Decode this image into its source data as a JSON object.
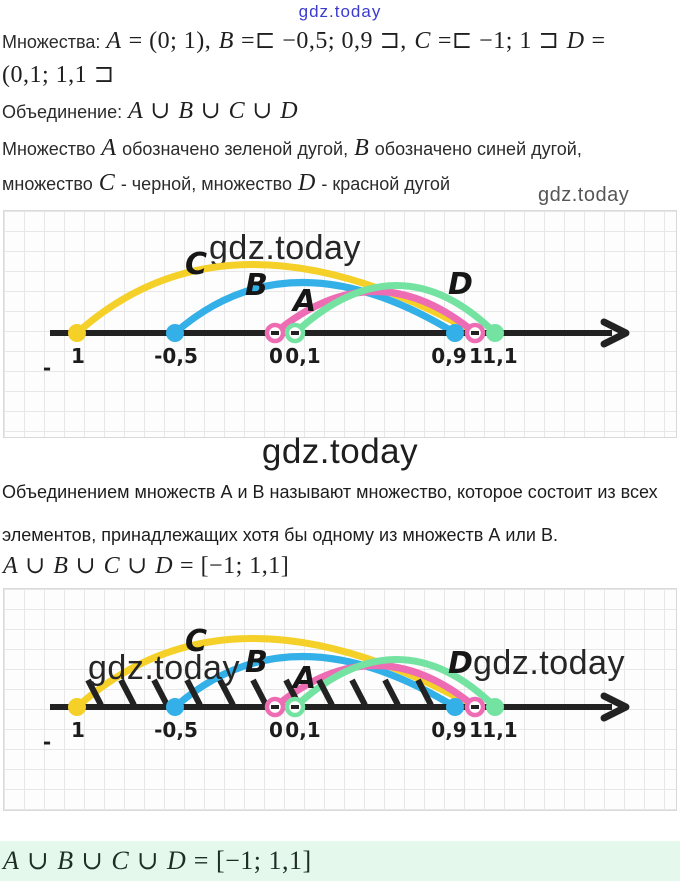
{
  "palette": {
    "set_a_pink": "#ee6cb3",
    "set_b_blue": "#33b0e8",
    "set_c_yellow": "#f4d029",
    "set_d_green": "#74e3a2",
    "line": "#222222",
    "answer_bg": "#e4f8ec",
    "title_blue": "#3b3bd0"
  },
  "watermarks": {
    "top": "gdz.today",
    "top_right": "gdz.today",
    "diagram1": "gdz.today",
    "mid": "gdz.today",
    "d2_left": "gdz.today",
    "d2_right": "gdz.today"
  },
  "intro": {
    "line1": [
      {
        "k": "lbl",
        "t": "Множества: "
      },
      {
        "k": "var",
        "t": "A"
      },
      {
        "k": "m",
        "t": " = (0;  1),  "
      },
      {
        "k": "var",
        "t": "B"
      },
      {
        "k": "m",
        "t": " =⊏ −0,5;  0,9 ⊐,  "
      },
      {
        "k": "var",
        "t": "C"
      },
      {
        "k": "m",
        "t": " =⊏ −1;  1 ⊐  "
      },
      {
        "k": "var",
        "t": "D"
      },
      {
        "k": "m",
        "t": " ="
      }
    ],
    "line2": [
      {
        "k": "m",
        "t": "(0,1;  1,1 ⊐"
      }
    ],
    "line3": [
      {
        "k": "lbl",
        "t": "Объединение: "
      },
      {
        "k": "var",
        "t": "A"
      },
      {
        "k": "m",
        "t": " ∪ "
      },
      {
        "k": "var",
        "t": "B"
      },
      {
        "k": "m",
        "t": " ∪ "
      },
      {
        "k": "var",
        "t": "C"
      },
      {
        "k": "m",
        "t": " ∪ "
      },
      {
        "k": "var",
        "t": "D"
      }
    ],
    "line4": [
      {
        "k": "lbl",
        "t": "Множество "
      },
      {
        "k": "var",
        "t": "A"
      },
      {
        "k": "lbl",
        "t": " обозначено зеленой дугой, "
      },
      {
        "k": "var",
        "t": "B"
      },
      {
        "k": "lbl",
        "t": " обозначено синей дугой,"
      }
    ],
    "line5": [
      {
        "k": "lbl",
        "t": "множество "
      },
      {
        "k": "var",
        "t": "C"
      },
      {
        "k": "lbl",
        "t": " - черной, множество "
      },
      {
        "k": "var",
        "t": "D"
      },
      {
        "k": "lbl",
        "t": " - красной дугой"
      }
    ]
  },
  "explanation": {
    "line1": "Объединением множеств А и В называют множество, которое состоит из всех",
    "line2": "элементов, принадлежащих хотя бы одному из множеств А или В."
  },
  "union_formula": [
    {
      "k": "var",
      "t": "A"
    },
    {
      "k": "m",
      "t": " ∪ "
    },
    {
      "k": "var",
      "t": "B"
    },
    {
      "k": "m",
      "t": " ∪ "
    },
    {
      "k": "var",
      "t": "C"
    },
    {
      "k": "m",
      "t": " ∪ "
    },
    {
      "k": "var",
      "t": "D"
    },
    {
      "k": "m",
      "t": " = [−1;  1,1]"
    }
  ],
  "answer_formula": [
    {
      "k": "var",
      "t": "A"
    },
    {
      "k": "m",
      "t": " ∪ "
    },
    {
      "k": "var",
      "t": "B"
    },
    {
      "k": "m",
      "t": " ∪ "
    },
    {
      "k": "var",
      "t": "C"
    },
    {
      "k": "m",
      "t": " ∪ "
    },
    {
      "k": "var",
      "t": "D"
    },
    {
      "k": "m",
      "t": " = [−1;  1,1]"
    }
  ],
  "diagram": {
    "labels": {
      "a": "A",
      "b": "B",
      "c": "C",
      "d": "D"
    },
    "ticks": {
      "t_m1": "1",
      "t_minus": "-",
      "t_m05": "-0,5",
      "t_0": "0",
      "t_01": "0,1",
      "t_09": "0,9",
      "t_1": "1",
      "t_11": "1,1"
    }
  }
}
